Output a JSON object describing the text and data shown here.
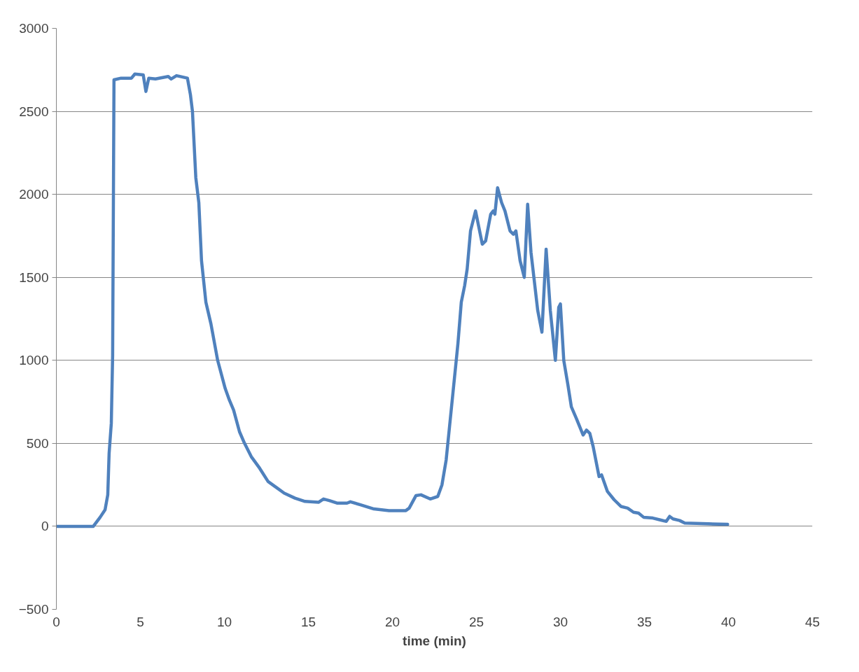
{
  "chart_data": {
    "type": "line",
    "xlabel": "time (min)",
    "x": [
      0,
      2,
      2.2,
      2.6,
      2.9,
      3.06,
      3.14,
      3.27,
      3.35,
      3.43,
      3.85,
      4.05,
      4.47,
      4.67,
      5.17,
      5.33,
      5.5,
      5.9,
      6.66,
      6.83,
      7.15,
      7.8,
      7.98,
      8.1,
      8.3,
      8.48,
      8.64,
      8.9,
      9.2,
      9.6,
      10.05,
      10.3,
      10.55,
      10.9,
      11.2,
      11.6,
      12.1,
      12.6,
      13.15,
      13.56,
      14.2,
      14.8,
      15.6,
      15.9,
      16.25,
      16.7,
      17.3,
      17.5,
      18.1,
      18.9,
      19.8,
      20.8,
      21.0,
      21.4,
      21.7,
      22.25,
      22.7,
      22.95,
      23.2,
      23.4,
      23.6,
      23.9,
      24.1,
      24.3,
      24.45,
      24.65,
      24.95,
      25.15,
      25.35,
      25.55,
      25.85,
      26.0,
      26.1,
      26.26,
      26.5,
      26.7,
      27.0,
      27.2,
      27.35,
      27.6,
      27.85,
      28.05,
      28.25,
      28.65,
      28.9,
      29.15,
      29.4,
      29.7,
      29.9,
      30.0,
      30.2,
      30.45,
      30.65,
      30.95,
      31.15,
      31.35,
      31.55,
      31.75,
      31.95,
      32.3,
      32.45,
      32.8,
      33.2,
      33.6,
      34.0,
      34.35,
      34.65,
      34.95,
      35.5,
      35.9,
      36.3,
      36.5,
      36.7,
      37.1,
      37.4,
      38.8,
      39.95
    ],
    "series": [
      {
        "color": "#4f81bd",
        "values": [
          0,
          0,
          0,
          54,
          100,
          190,
          440,
          620,
          1030,
          2690,
          2700,
          2700,
          2700,
          2725,
          2720,
          2620,
          2700,
          2695,
          2710,
          2695,
          2715,
          2700,
          2600,
          2500,
          2100,
          1950,
          1600,
          1350,
          1220,
          1000,
          830,
          760,
          700,
          570,
          500,
          420,
          350,
          270,
          230,
          200,
          170,
          150,
          145,
          165,
          155,
          140,
          140,
          148,
          130,
          105,
          95,
          95,
          110,
          185,
          190,
          165,
          180,
          250,
          400,
          600,
          800,
          1100,
          1350,
          1450,
          1550,
          1780,
          1900,
          1800,
          1700,
          1720,
          1880,
          1900,
          1880,
          2040,
          1950,
          1900,
          1780,
          1760,
          1780,
          1600,
          1500,
          1940,
          1650,
          1300,
          1170,
          1670,
          1300,
          1000,
          1320,
          1340,
          1000,
          850,
          720,
          650,
          600,
          550,
          580,
          560,
          480,
          300,
          310,
          210,
          160,
          120,
          110,
          85,
          80,
          55,
          50,
          40,
          30,
          60,
          45,
          35,
          20,
          15,
          12
        ]
      }
    ],
    "xlim": [
      0,
      45
    ],
    "xticks": [
      0,
      5,
      10,
      15,
      20,
      25,
      30,
      35,
      40,
      45
    ],
    "ylim": [
      -500,
      3000
    ],
    "yticks": [
      -500,
      0,
      500,
      1000,
      1500,
      2000,
      2500,
      3000
    ],
    "grid": "y",
    "line_style": "solid",
    "marker": "none"
  }
}
